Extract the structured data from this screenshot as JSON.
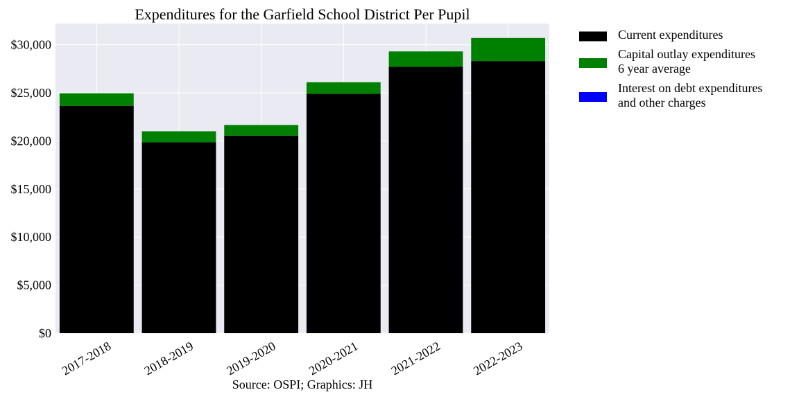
{
  "chart_data": {
    "type": "bar",
    "stacked": true,
    "title": "Expenditures for the Garfield School District Per Pupil",
    "xlabel": "",
    "ylabel": "",
    "categories": [
      "2017-2018",
      "2018-2019",
      "2019-2020",
      "2020-2021",
      "2021-2022",
      "2022-2023"
    ],
    "series": [
      {
        "name": "Current expenditures",
        "color": "#000000",
        "values": [
          23650,
          19850,
          20550,
          24900,
          27700,
          28300
        ]
      },
      {
        "name": "Capital outlay expenditures\n6 year average",
        "color": "#008000",
        "values": [
          1300,
          1150,
          1100,
          1200,
          1600,
          2400
        ]
      },
      {
        "name": "Interest on debt expenditures\nand other charges",
        "color": "#0000ff",
        "values": [
          0,
          0,
          0,
          0,
          0,
          0
        ]
      }
    ],
    "ylim": [
      0,
      32200
    ],
    "yticks": [
      0,
      5000,
      10000,
      15000,
      20000,
      25000,
      30000
    ],
    "ytick_labels": [
      "$0",
      "$5,000",
      "$10,000",
      "$15,000",
      "$20,000",
      "$25,000",
      "$30,000"
    ],
    "grid": true,
    "plot_background": "#eaeaf2",
    "legend_position": "outside-right-top",
    "source_note": "Source: OSPI; Graphics: JH"
  }
}
